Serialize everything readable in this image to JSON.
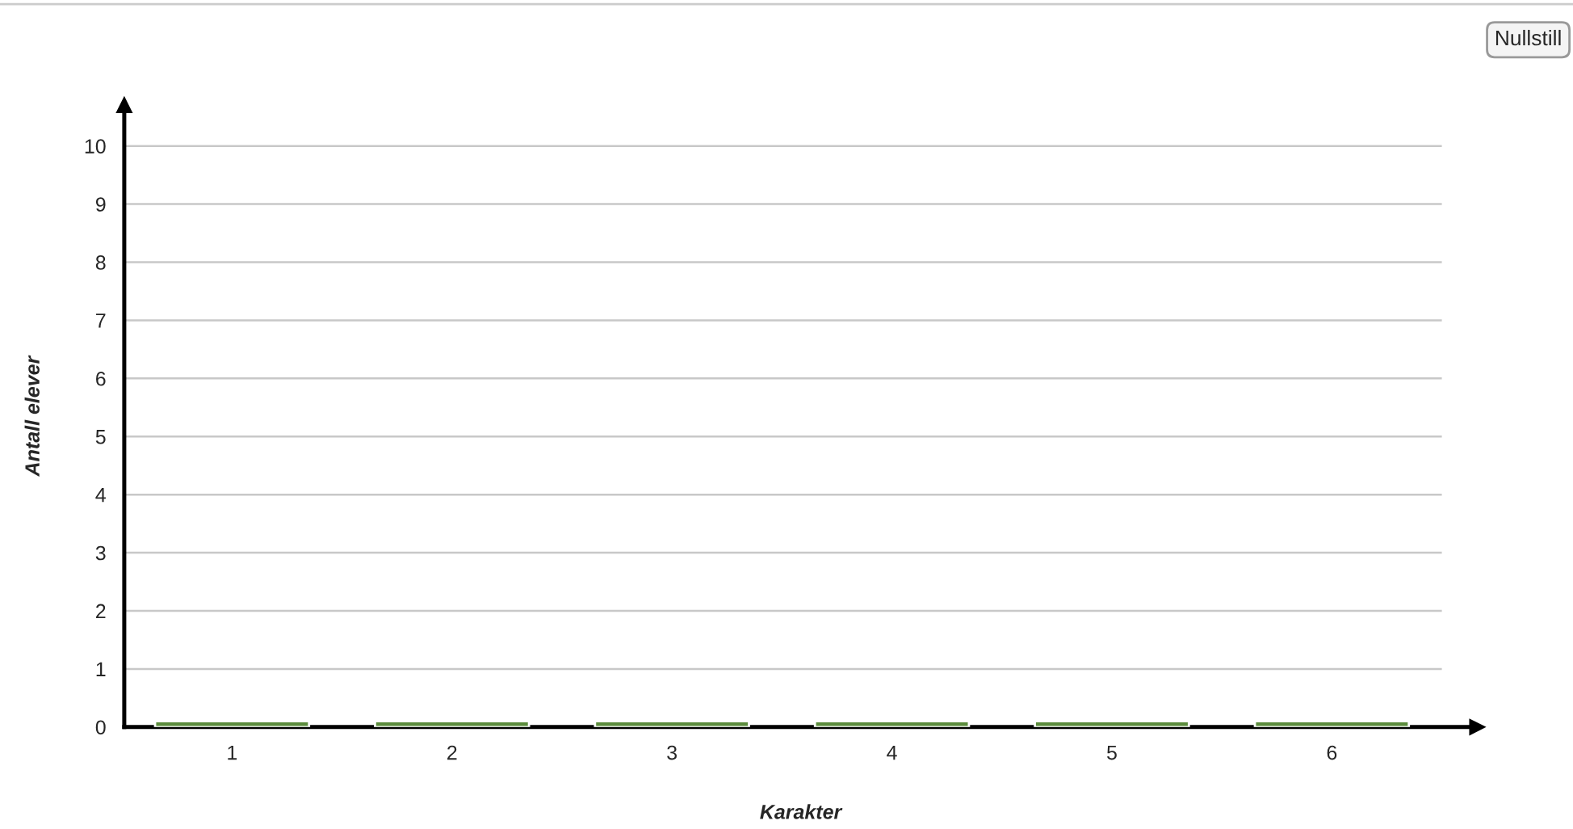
{
  "chart_data": {
    "type": "bar",
    "xlabel": "Karakter",
    "ylabel": "Antall elever",
    "categories": [
      "1",
      "2",
      "3",
      "4",
      "5",
      "6"
    ],
    "values": [
      0.1,
      0.1,
      0.1,
      0.1,
      0.1,
      0.1
    ],
    "color": "#5b8c3c",
    "ylim": [
      0,
      10.7
    ],
    "yticks": [
      0,
      1,
      2,
      3,
      4,
      5,
      6,
      7,
      8,
      9,
      10
    ],
    "grid": "y",
    "annotations": [
      "Nullstill"
    ]
  }
}
